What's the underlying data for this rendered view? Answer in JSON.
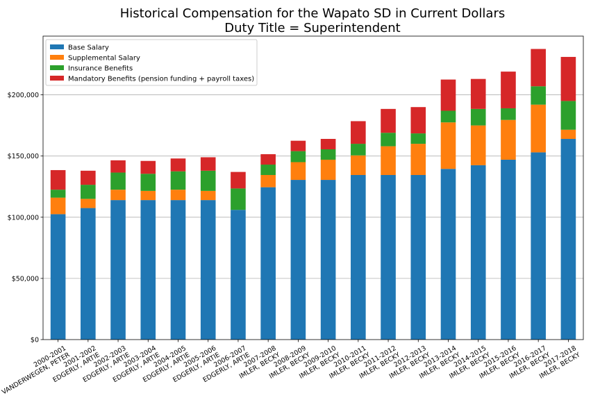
{
  "chart_data": {
    "type": "bar",
    "stacked": true,
    "title": "Historical Compensation for the Wapato SD in Current Dollars",
    "subtitle": "Duty Title = Superintendent",
    "xlabel": "",
    "ylabel": "",
    "ylim": [
      0,
      248000
    ],
    "yticks": [
      {
        "value": 0,
        "label": "$0"
      },
      {
        "value": 50000,
        "label": "$50,000"
      },
      {
        "value": 100000,
        "label": "$100,000"
      },
      {
        "value": 150000,
        "label": "$150,000"
      },
      {
        "value": 200000,
        "label": "$200,000"
      }
    ],
    "grid": "horizontal",
    "legend_position": "top-left",
    "categories": [
      {
        "year": "2000-2001",
        "name": "VANDERWEGEN, PETER"
      },
      {
        "year": "2001-2002",
        "name": "EDGERLY, ARTIE"
      },
      {
        "year": "2002-2003",
        "name": "EDGERLY, ARTIE"
      },
      {
        "year": "2003-2004",
        "name": "EDGERLY, ARTIE"
      },
      {
        "year": "2004-2005",
        "name": "EDGERLY, ARTIE"
      },
      {
        "year": "2005-2006",
        "name": "EDGERLY, ARTIE"
      },
      {
        "year": "2006-2007",
        "name": "EDGERLY, ARTIE"
      },
      {
        "year": "2007-2008",
        "name": "IMLER, BECKY"
      },
      {
        "year": "2008-2009",
        "name": "IMLER, BECKY"
      },
      {
        "year": "2009-2010",
        "name": "IMLER, BECKY"
      },
      {
        "year": "2010-2011",
        "name": "IMLER, BECKY"
      },
      {
        "year": "2011-2012",
        "name": "IMLER, BECKY"
      },
      {
        "year": "2012-2013",
        "name": "IMLER, BECKY"
      },
      {
        "year": "2013-2014",
        "name": "IMLER, BECKY"
      },
      {
        "year": "2014-2015",
        "name": "IMLER, BECKY"
      },
      {
        "year": "2015-2016",
        "name": "IMLER, BECKY"
      },
      {
        "year": "2016-2017",
        "name": "IMLER, BECKY"
      },
      {
        "year": "2017-2018",
        "name": "IMLER, BECKY"
      }
    ],
    "series": [
      {
        "name": "Base Salary",
        "color": "#1f77b4",
        "values": [
          102500,
          107500,
          114000,
          114000,
          114000,
          114000,
          106000,
          124500,
          130500,
          130500,
          134500,
          134500,
          134500,
          139500,
          142500,
          147000,
          153000,
          164000
        ]
      },
      {
        "name": "Supplemental Salary",
        "color": "#ff7f0e",
        "values": [
          13500,
          7500,
          8500,
          7500,
          8500,
          7500,
          0,
          10000,
          14500,
          16500,
          16000,
          23500,
          25500,
          38000,
          32500,
          32500,
          39000,
          7500
        ]
      },
      {
        "name": "Insurance Benefits",
        "color": "#2ca02c",
        "values": [
          6500,
          11500,
          14000,
          14000,
          15000,
          16500,
          17500,
          8500,
          9000,
          8500,
          9500,
          11000,
          8500,
          9500,
          13500,
          9500,
          15000,
          23500
        ]
      },
      {
        "name": "Mandatory Benefits (pension funding + payroll taxes)",
        "color": "#d62728",
        "values": [
          16000,
          11500,
          10000,
          10500,
          10500,
          11000,
          13500,
          8500,
          8500,
          8500,
          18500,
          19500,
          21500,
          25500,
          24500,
          30000,
          30500,
          36000
        ]
      }
    ]
  }
}
